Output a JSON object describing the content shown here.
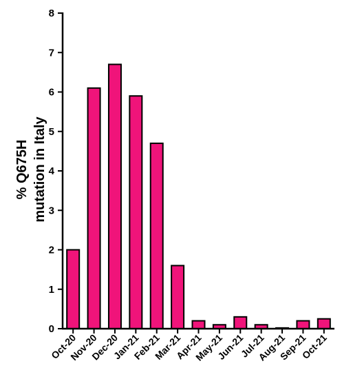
{
  "chart_data": {
    "type": "bar",
    "title": "",
    "xlabel": "",
    "ylabel_lines": [
      "% Q675H",
      "mutation in Italy"
    ],
    "categories": [
      "Oct-20",
      "Nov-20",
      "Dec-20",
      "Jan-21",
      "Feb-21",
      "Mar-21",
      "Apr-21",
      "May-21",
      "Jun-21",
      "Jul-21",
      "Aug-21",
      "Sep-21",
      "Oct-21"
    ],
    "values": [
      2.0,
      6.1,
      6.7,
      5.9,
      4.7,
      1.6,
      0.2,
      0.1,
      0.3,
      0.1,
      0.02,
      0.2,
      0.25
    ],
    "ylim": [
      0,
      8
    ],
    "yticks": [
      0,
      1,
      2,
      3,
      4,
      5,
      6,
      7,
      8
    ],
    "bar_color": "#f0147a",
    "grid": false,
    "legend": "none"
  }
}
